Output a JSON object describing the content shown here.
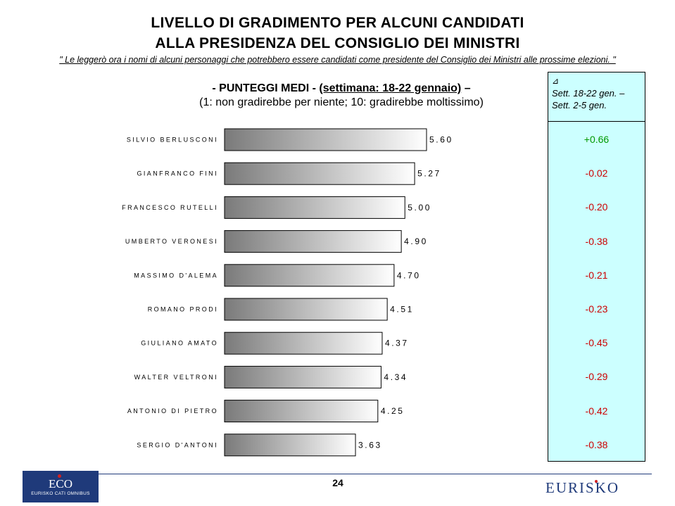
{
  "header": {
    "title_line1": "LIVELLO DI GRADIMENTO PER ALCUNI CANDIDATI",
    "title_line2": "ALLA PRESIDENZA DEL CONSIGLIO DEI MINISTRI",
    "quote": "\" Le leggerò ora i nomi di alcuni personaggi che potrebbero essere candidati come presidente del Consiglio dei Ministri alle prossime elezioni. \"",
    "subtitle_bold": "- PUNTEGGI MEDI -",
    "subtitle_period": "(settimana: 18-22 gennaio)",
    "subtitle_dash": "–",
    "subtitle_scale": "(1: non gradirebbe per niente; 10: gradirebbe moltissimo)"
  },
  "delta_panel": {
    "symbol": "⊿",
    "line1": "Sett. 18-22 gen. –",
    "line2": "Sett. 2-5 gen.",
    "positive_color": "#009900",
    "negative_color": "#cc0000"
  },
  "chart_data": {
    "type": "bar",
    "orientation": "horizontal",
    "categories": [
      "SILVIO BERLUSCONI",
      "GIANFRANCO FINI",
      "FRANCESCO RUTELLI",
      "UMBERTO VERONESI",
      "MASSIMO D'ALEMA",
      "ROMANO PRODI",
      "GIULIANO AMATO",
      "WALTER VELTRONI",
      "ANTONIO DI PIETRO",
      "SERGIO D'ANTONI"
    ],
    "values": [
      5.6,
      5.27,
      5.0,
      4.9,
      4.7,
      4.51,
      4.37,
      4.34,
      4.25,
      3.63
    ],
    "value_labels": [
      "5.60",
      "5.27",
      "5.00",
      "4.90",
      "4.70",
      "4.51",
      "4.37",
      "4.34",
      "4.25",
      "3.63"
    ],
    "deltas": [
      "+0.66",
      "-0.02",
      "-0.20",
      "-0.38",
      "-0.21",
      "-0.23",
      "-0.45",
      "-0.29",
      "-0.42",
      "-0.38"
    ],
    "xlim": [
      0,
      5.6
    ],
    "grid": false,
    "bar_gradient": [
      "#7a7a7a",
      "#ffffff"
    ]
  },
  "footer": {
    "page_number": "24",
    "eco_logo_main": "ECO",
    "eco_logo_sub": "EURISKO CATI OMNIBUS",
    "eurisko_logo": "EURISKO"
  }
}
